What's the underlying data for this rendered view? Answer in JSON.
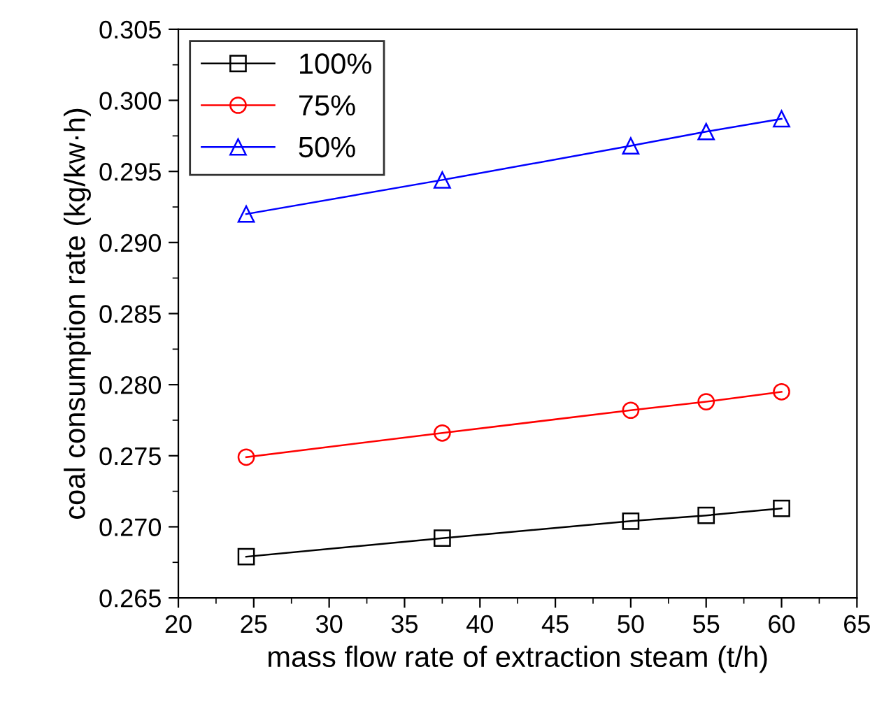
{
  "chart_data": {
    "type": "line",
    "xlabel": "mass flow rate of extraction steam (t/h)",
    "ylabel": "coal consumption rate (kg/kw·h)",
    "x": [
      24.5,
      37.5,
      50,
      55,
      60
    ],
    "series": [
      {
        "name": "100%",
        "color": "#000000",
        "marker": "square",
        "values": [
          0.2679,
          0.2692,
          0.2704,
          0.2708,
          0.2713
        ]
      },
      {
        "name": "75%",
        "color": "#ff0000",
        "marker": "circle",
        "values": [
          0.2749,
          0.2766,
          0.2782,
          0.2788,
          0.2795
        ]
      },
      {
        "name": "50%",
        "color": "#0000ff",
        "marker": "triangle",
        "values": [
          0.292,
          0.2944,
          0.2968,
          0.2978,
          0.2987
        ]
      }
    ],
    "xlim": [
      20,
      65
    ],
    "xticks": [
      20,
      25,
      30,
      35,
      40,
      45,
      50,
      55,
      60,
      65
    ],
    "ylim": [
      0.265,
      0.305
    ],
    "yticks": [
      {
        "value": 0.265,
        "label": "0.265"
      },
      {
        "value": 0.27,
        "label": "0.270"
      },
      {
        "value": 0.275,
        "label": "0.275"
      },
      {
        "value": 0.28,
        "label": "0.280"
      },
      {
        "value": 0.285,
        "label": "0.285"
      },
      {
        "value": 0.29,
        "label": "0.290"
      },
      {
        "value": 0.295,
        "label": "0.295"
      },
      {
        "value": 0.3,
        "label": "0.300"
      },
      {
        "value": 0.305,
        "label": "0.305"
      }
    ],
    "grid": false,
    "legend": "top left",
    "line_style": "solid"
  }
}
